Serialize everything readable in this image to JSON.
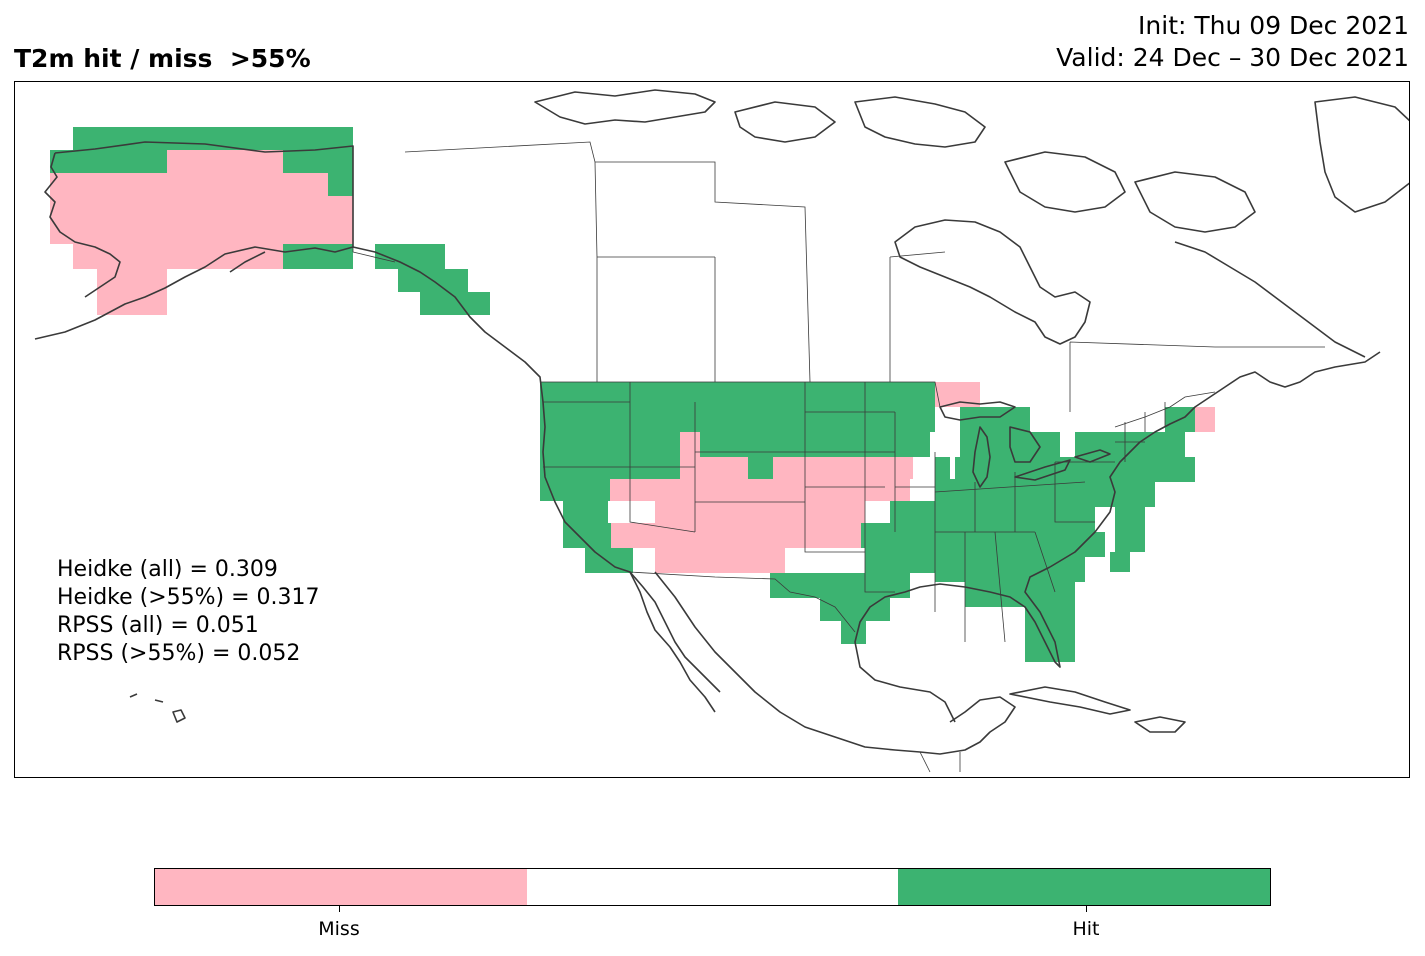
{
  "title": "T2m hit / miss  >55%",
  "init_text": "Init: Thu 09 Dec 2021",
  "valid_text": "Valid: 24 Dec – 30 Dec 2021",
  "stats": [
    "Heidke (all) = 0.309",
    "Heidke (>55%) = 0.317",
    "RPSS (all) = 0.051",
    "RPSS (>55%) = 0.052"
  ],
  "colors": {
    "miss": "#ffb6c1",
    "neutral": "#ffffff",
    "hit": "#3cb371",
    "coastline": "#3a3a3a"
  },
  "legend": {
    "categories": [
      "Miss",
      "",
      "Hit"
    ],
    "labels": [
      "Miss",
      "Hit"
    ]
  }
}
